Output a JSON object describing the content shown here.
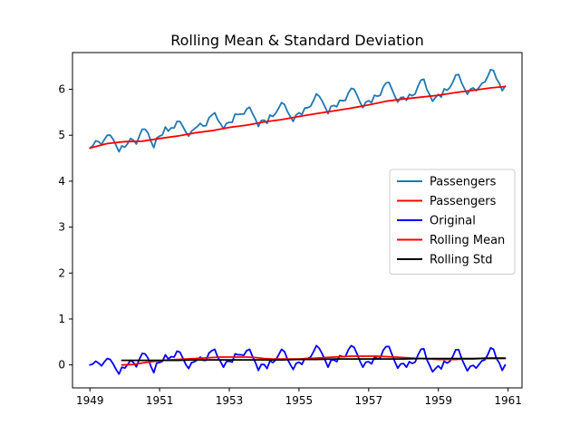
{
  "chart_data": {
    "type": "line",
    "title": "Rolling Mean & Standard Deviation",
    "xlabel": "",
    "ylabel": "",
    "xlim": [
      1948.5,
      1961.4
    ],
    "ylim": [
      -0.5,
      6.8
    ],
    "xticks": [
      1949,
      1951,
      1953,
      1955,
      1957,
      1959,
      1961
    ],
    "yticks": [
      0,
      1,
      2,
      3,
      4,
      5,
      6
    ],
    "grid": false,
    "legend_position": "center-right",
    "series": [
      {
        "name": "Passengers",
        "color": "#1f77b4",
        "x": [
          1949.0,
          1949.083,
          1949.167,
          1949.25,
          1949.333,
          1949.417,
          1949.5,
          1949.583,
          1949.667,
          1949.75,
          1949.833,
          1949.917,
          1950.0,
          1950.083,
          1950.167,
          1950.25,
          1950.333,
          1950.417,
          1950.5,
          1950.583,
          1950.667,
          1950.75,
          1950.833,
          1950.917,
          1951.0,
          1951.083,
          1951.167,
          1951.25,
          1951.333,
          1951.417,
          1951.5,
          1951.583,
          1951.667,
          1951.75,
          1951.833,
          1951.917,
          1952.0,
          1952.083,
          1952.167,
          1952.25,
          1952.333,
          1952.417,
          1952.5,
          1952.583,
          1952.667,
          1952.75,
          1952.833,
          1952.917,
          1953.0,
          1953.083,
          1953.167,
          1953.25,
          1953.333,
          1953.417,
          1953.5,
          1953.583,
          1953.667,
          1953.75,
          1953.833,
          1953.917,
          1954.0,
          1954.083,
          1954.167,
          1954.25,
          1954.333,
          1954.417,
          1954.5,
          1954.583,
          1954.667,
          1954.75,
          1954.833,
          1954.917,
          1955.0,
          1955.083,
          1955.167,
          1955.25,
          1955.333,
          1955.417,
          1955.5,
          1955.583,
          1955.667,
          1955.75,
          1955.833,
          1955.917,
          1956.0,
          1956.083,
          1956.167,
          1956.25,
          1956.333,
          1956.417,
          1956.5,
          1956.583,
          1956.667,
          1956.75,
          1956.833,
          1956.917,
          1957.0,
          1957.083,
          1957.167,
          1957.25,
          1957.333,
          1957.417,
          1957.5,
          1957.583,
          1957.667,
          1957.75,
          1957.833,
          1957.917,
          1958.0,
          1958.083,
          1958.167,
          1958.25,
          1958.333,
          1958.417,
          1958.5,
          1958.583,
          1958.667,
          1958.75,
          1958.833,
          1958.917,
          1959.0,
          1959.083,
          1959.167,
          1959.25,
          1959.333,
          1959.417,
          1959.5,
          1959.583,
          1959.667,
          1959.75,
          1959.833,
          1959.917,
          1960.0,
          1960.083,
          1960.167,
          1960.25,
          1960.333,
          1960.417,
          1960.5,
          1960.583,
          1960.667,
          1960.75,
          1960.833,
          1960.917
        ],
        "y": [
          4.72,
          4.77,
          4.88,
          4.86,
          4.8,
          4.91,
          5.0,
          5.0,
          4.91,
          4.78,
          4.64,
          4.77,
          4.74,
          4.82,
          4.93,
          4.89,
          4.81,
          4.98,
          5.13,
          5.13,
          5.05,
          4.87,
          4.73,
          4.94,
          4.98,
          5.01,
          5.18,
          5.09,
          5.16,
          5.16,
          5.3,
          5.3,
          5.19,
          5.07,
          4.98,
          5.09,
          5.14,
          5.19,
          5.26,
          5.2,
          5.21,
          5.38,
          5.44,
          5.49,
          5.34,
          5.25,
          5.14,
          5.26,
          5.28,
          5.28,
          5.46,
          5.45,
          5.46,
          5.46,
          5.57,
          5.61,
          5.47,
          5.35,
          5.19,
          5.32,
          5.33,
          5.26,
          5.44,
          5.41,
          5.48,
          5.59,
          5.71,
          5.67,
          5.52,
          5.41,
          5.3,
          5.44,
          5.49,
          5.45,
          5.59,
          5.6,
          5.63,
          5.76,
          5.9,
          5.85,
          5.74,
          5.61,
          5.47,
          5.63,
          5.65,
          5.62,
          5.76,
          5.75,
          5.76,
          5.92,
          6.02,
          6.0,
          5.87,
          5.72,
          5.6,
          5.72,
          5.75,
          5.71,
          5.87,
          5.85,
          5.87,
          6.05,
          6.14,
          6.15,
          6.0,
          5.85,
          5.72,
          5.82,
          5.83,
          5.76,
          5.89,
          5.86,
          5.9,
          6.07,
          6.2,
          6.22,
          6.0,
          5.88,
          5.74,
          5.82,
          5.89,
          5.83,
          6.01,
          5.98,
          6.04,
          6.16,
          6.31,
          6.32,
          6.14,
          6.01,
          5.89,
          6.0,
          6.03,
          5.97,
          6.04,
          6.13,
          6.16,
          6.28,
          6.43,
          6.41,
          6.23,
          6.13,
          5.97,
          6.07
        ]
      },
      {
        "name": "Passengers",
        "color": "#ff0000",
        "x": [
          1949.0,
          1949.5,
          1950.0,
          1950.5,
          1951.0,
          1951.5,
          1952.0,
          1952.5,
          1953.0,
          1953.5,
          1954.0,
          1954.5,
          1955.0,
          1955.5,
          1956.0,
          1956.5,
          1957.0,
          1957.5,
          1958.0,
          1958.5,
          1959.0,
          1959.5,
          1960.0,
          1960.5,
          1960.917
        ],
        "y": [
          4.72,
          4.82,
          4.86,
          4.87,
          4.93,
          4.98,
          5.05,
          5.1,
          5.17,
          5.22,
          5.29,
          5.34,
          5.41,
          5.47,
          5.53,
          5.59,
          5.66,
          5.74,
          5.79,
          5.83,
          5.87,
          5.93,
          5.98,
          6.03,
          6.06
        ]
      },
      {
        "name": "Original",
        "color": "#0000ff",
        "x": [
          1949.0,
          1949.083,
          1949.167,
          1949.25,
          1949.333,
          1949.417,
          1949.5,
          1949.583,
          1949.667,
          1949.75,
          1949.833,
          1949.917,
          1950.0,
          1950.083,
          1950.167,
          1950.25,
          1950.333,
          1950.417,
          1950.5,
          1950.583,
          1950.667,
          1950.75,
          1950.833,
          1950.917,
          1951.0,
          1951.083,
          1951.167,
          1951.25,
          1951.333,
          1951.417,
          1951.5,
          1951.583,
          1951.667,
          1951.75,
          1951.833,
          1951.917,
          1952.0,
          1952.083,
          1952.167,
          1952.25,
          1952.333,
          1952.417,
          1952.5,
          1952.583,
          1952.667,
          1952.75,
          1952.833,
          1952.917,
          1953.0,
          1953.083,
          1953.167,
          1953.25,
          1953.333,
          1953.417,
          1953.5,
          1953.583,
          1953.667,
          1953.75,
          1953.833,
          1953.917,
          1954.0,
          1954.083,
          1954.167,
          1954.25,
          1954.333,
          1954.417,
          1954.5,
          1954.583,
          1954.667,
          1954.75,
          1954.833,
          1954.917,
          1955.0,
          1955.083,
          1955.167,
          1955.25,
          1955.333,
          1955.417,
          1955.5,
          1955.583,
          1955.667,
          1955.75,
          1955.833,
          1955.917,
          1956.0,
          1956.083,
          1956.167,
          1956.25,
          1956.333,
          1956.417,
          1956.5,
          1956.583,
          1956.667,
          1956.75,
          1956.833,
          1956.917,
          1957.0,
          1957.083,
          1957.167,
          1957.25,
          1957.333,
          1957.417,
          1957.5,
          1957.583,
          1957.667,
          1957.75,
          1957.833,
          1957.917,
          1958.0,
          1958.083,
          1958.167,
          1958.25,
          1958.333,
          1958.417,
          1958.5,
          1958.583,
          1958.667,
          1958.75,
          1958.833,
          1958.917,
          1959.0,
          1959.083,
          1959.167,
          1959.25,
          1959.333,
          1959.417,
          1959.5,
          1959.583,
          1959.667,
          1959.75,
          1959.833,
          1959.917,
          1960.0,
          1960.083,
          1960.167,
          1960.25,
          1960.333,
          1960.417,
          1960.5,
          1960.583,
          1960.667,
          1960.75,
          1960.833,
          1960.917
        ],
        "y": [
          0.0,
          0.02,
          0.08,
          0.04,
          -0.02,
          0.07,
          0.14,
          0.12,
          0.02,
          -0.1,
          -0.2,
          -0.05,
          -0.07,
          0.01,
          0.1,
          0.05,
          -0.04,
          0.12,
          0.25,
          0.24,
          0.15,
          -0.03,
          -0.17,
          0.04,
          0.05,
          0.08,
          0.22,
          0.13,
          0.18,
          0.17,
          0.3,
          0.28,
          0.15,
          0.01,
          -0.08,
          0.05,
          0.07,
          0.11,
          0.17,
          0.1,
          0.1,
          0.26,
          0.31,
          0.34,
          0.17,
          0.07,
          -0.05,
          0.07,
          0.08,
          0.06,
          0.24,
          0.22,
          0.22,
          0.21,
          0.31,
          0.34,
          0.18,
          0.05,
          -0.12,
          0.01,
          0.01,
          -0.08,
          0.09,
          0.05,
          0.11,
          0.22,
          0.34,
          0.29,
          0.13,
          0.01,
          -0.1,
          0.03,
          0.06,
          0.01,
          0.14,
          0.14,
          0.17,
          0.29,
          0.42,
          0.36,
          0.24,
          0.1,
          -0.05,
          0.1,
          0.11,
          0.07,
          0.2,
          0.18,
          0.18,
          0.33,
          0.42,
          0.38,
          0.24,
          0.08,
          -0.05,
          0.06,
          0.07,
          0.02,
          0.17,
          0.14,
          0.15,
          0.32,
          0.4,
          0.4,
          0.23,
          0.07,
          -0.07,
          0.02,
          0.03,
          -0.05,
          0.07,
          0.03,
          0.06,
          0.22,
          0.34,
          0.35,
          0.12,
          -0.01,
          -0.15,
          -0.08,
          -0.02,
          -0.09,
          0.08,
          0.04,
          0.08,
          0.19,
          0.33,
          0.33,
          0.14,
          0.0,
          -0.13,
          -0.03,
          -0.01,
          -0.07,
          0.01,
          0.09,
          0.11,
          0.22,
          0.37,
          0.34,
          0.14,
          0.04,
          -0.12,
          0.0
        ]
      },
      {
        "name": "Rolling Mean",
        "color": "#ff0000",
        "x": [
          1949.917,
          1950.25,
          1950.5,
          1950.75,
          1951.0,
          1951.25,
          1951.5,
          1951.75,
          1952.0,
          1952.25,
          1952.5,
          1952.75,
          1953.0,
          1953.25,
          1953.5,
          1953.75,
          1954.0,
          1954.25,
          1954.5,
          1954.75,
          1955.0,
          1955.25,
          1955.5,
          1955.75,
          1956.0,
          1956.25,
          1956.5,
          1956.75,
          1957.0,
          1957.25,
          1957.5,
          1957.75,
          1958.0,
          1958.25,
          1958.5,
          1958.75,
          1959.0,
          1959.25,
          1959.5,
          1959.75,
          1960.0,
          1960.25,
          1960.5,
          1960.917
        ],
        "y": [
          0.0,
          0.01,
          0.04,
          0.07,
          0.09,
          0.11,
          0.12,
          0.13,
          0.14,
          0.15,
          0.16,
          0.17,
          0.17,
          0.17,
          0.17,
          0.16,
          0.14,
          0.13,
          0.13,
          0.13,
          0.13,
          0.14,
          0.15,
          0.16,
          0.17,
          0.18,
          0.19,
          0.19,
          0.19,
          0.19,
          0.18,
          0.17,
          0.16,
          0.15,
          0.14,
          0.13,
          0.12,
          0.12,
          0.12,
          0.13,
          0.13,
          0.14,
          0.14,
          0.14
        ]
      },
      {
        "name": "Rolling Std",
        "color": "#000000",
        "x": [
          1949.917,
          1950.5,
          1951.0,
          1951.5,
          1952.0,
          1952.5,
          1953.0,
          1953.5,
          1954.0,
          1954.5,
          1955.0,
          1955.5,
          1956.0,
          1956.5,
          1957.0,
          1957.5,
          1958.0,
          1958.5,
          1959.0,
          1959.5,
          1960.0,
          1960.5,
          1960.917
        ],
        "y": [
          0.1,
          0.1,
          0.1,
          0.1,
          0.11,
          0.11,
          0.11,
          0.11,
          0.11,
          0.11,
          0.12,
          0.12,
          0.13,
          0.13,
          0.13,
          0.13,
          0.13,
          0.14,
          0.14,
          0.14,
          0.14,
          0.15,
          0.15
        ]
      }
    ]
  }
}
